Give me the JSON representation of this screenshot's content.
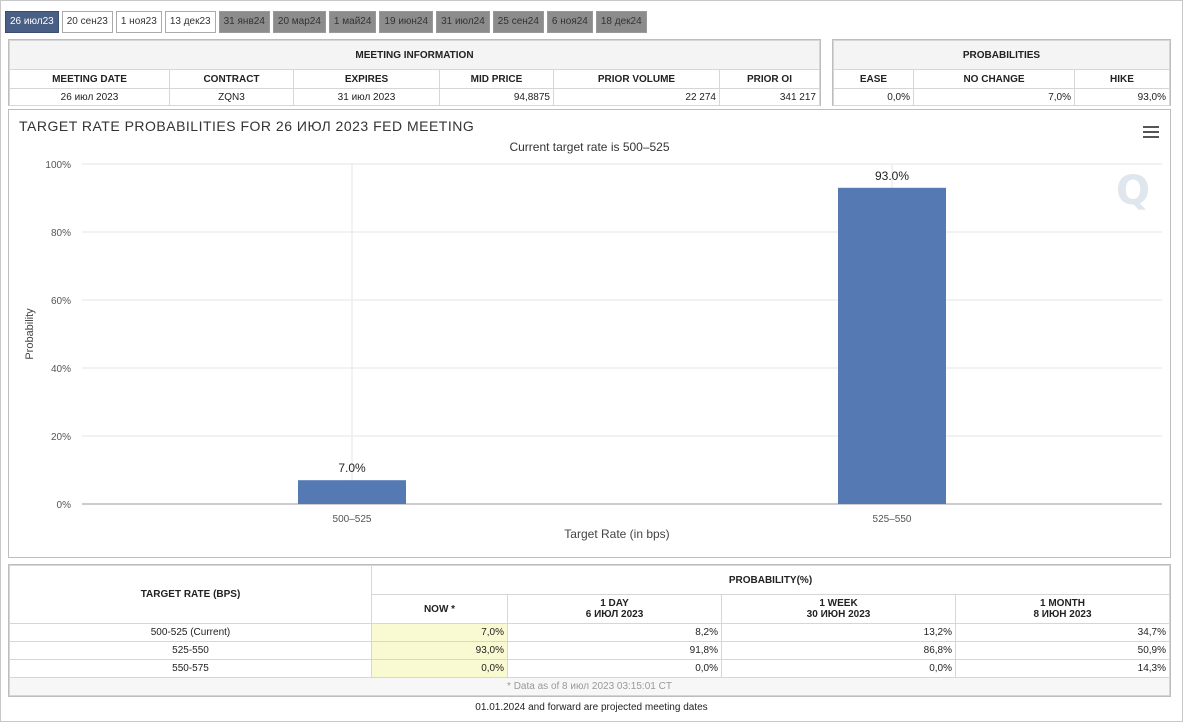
{
  "tabs": [
    {
      "label": "26 июл23",
      "style": "active"
    },
    {
      "label": "20 сен23",
      "style": "light"
    },
    {
      "label": "1 ноя23",
      "style": "light"
    },
    {
      "label": "13 дек23",
      "style": "light"
    },
    {
      "label": "31 янв24",
      "style": "dark"
    },
    {
      "label": "20 мар24",
      "style": "dark"
    },
    {
      "label": "1 май24",
      "style": "dark"
    },
    {
      "label": "19 июн24",
      "style": "dark"
    },
    {
      "label": "31 июл24",
      "style": "dark"
    },
    {
      "label": "25 сен24",
      "style": "dark"
    },
    {
      "label": "6 ноя24",
      "style": "dark"
    },
    {
      "label": "18 дек24",
      "style": "dark"
    }
  ],
  "meeting_info": {
    "header": "MEETING INFORMATION",
    "columns": [
      "MEETING DATE",
      "CONTRACT",
      "EXPIRES",
      "MID PRICE",
      "PRIOR VOLUME",
      "PRIOR OI"
    ],
    "values": [
      "26 июл 2023",
      "ZQN3",
      "31 июл 2023",
      "94,8875",
      "22 274",
      "341 217"
    ]
  },
  "probabilities": {
    "header": "PROBABILITIES",
    "columns": [
      "EASE",
      "NO CHANGE",
      "HIKE"
    ],
    "values": [
      "0,0%",
      "7,0%",
      "93,0%"
    ]
  },
  "chart": {
    "title": "TARGET RATE PROBABILITIES FOR 26 ИЮЛ 2023 FED MEETING",
    "subtitle": "Current target rate is 500–525"
  },
  "chart_data": {
    "type": "bar",
    "categories": [
      "500–525",
      "525–550"
    ],
    "values": [
      7.0,
      93.0
    ],
    "data_labels": [
      "7.0%",
      "93.0%"
    ],
    "xlabel": "Target Rate (in bps)",
    "ylabel": "Probability",
    "ylim": [
      0,
      100
    ],
    "yticks": [
      "0%",
      "20%",
      "40%",
      "60%",
      "80%",
      "100%"
    ],
    "grid": true,
    "color": "#5479b3"
  },
  "bottom_table": {
    "rate_header": "TARGET RATE (BPS)",
    "prob_header": "PROBABILITY(%)",
    "sub_headers": [
      {
        "top": "NOW *",
        "bottom": ""
      },
      {
        "top": "1 DAY",
        "bottom": "6 ИЮЛ 2023"
      },
      {
        "top": "1 WEEK",
        "bottom": "30 ИЮН 2023"
      },
      {
        "top": "1 MONTH",
        "bottom": "8 ИЮН 2023"
      }
    ],
    "rows": [
      {
        "rate": "500-525 (Current)",
        "now": "7,0%",
        "day": "8,2%",
        "week": "13,2%",
        "month": "34,7%"
      },
      {
        "rate": "525-550",
        "now": "93,0%",
        "day": "91,8%",
        "week": "86,8%",
        "month": "50,9%"
      },
      {
        "rate": "550-575",
        "now": "0,0%",
        "day": "0,0%",
        "week": "0,0%",
        "month": "14,3%"
      }
    ],
    "footnote": "* Data as of 8 июл 2023 03:15:01 CT"
  },
  "projected_note": "01.01.2024 and forward are projected meeting dates"
}
